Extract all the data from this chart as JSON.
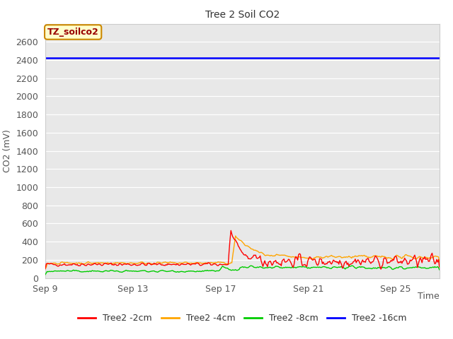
{
  "title": "Tree 2 Soil CO2",
  "ylabel": "CO2 (mV)",
  "xlabel": "Time",
  "annotation": "TZ_soilco2",
  "ylim": [
    0,
    2800
  ],
  "yticks": [
    0,
    200,
    400,
    600,
    800,
    1000,
    1200,
    1400,
    1600,
    1800,
    2000,
    2200,
    2400,
    2600
  ],
  "xtick_labels": [
    "Sep 9",
    "Sep 13",
    "Sep 17",
    "Sep 21",
    "Sep 25"
  ],
  "xtick_positions": [
    0,
    4,
    8,
    12,
    16
  ],
  "figure_bg": "#ffffff",
  "plot_bg": "#e8e8e8",
  "grid_color": "#ffffff",
  "series_colors": {
    "Tree2 -2cm": "#ff0000",
    "Tree2 -4cm": "#ffa500",
    "Tree2 -8cm": "#00cc00",
    "Tree2 -16cm": "#0000ff"
  },
  "blue_line_value": 2420,
  "xlim": [
    0,
    18
  ],
  "total_days": 18,
  "sep17_day": 8
}
